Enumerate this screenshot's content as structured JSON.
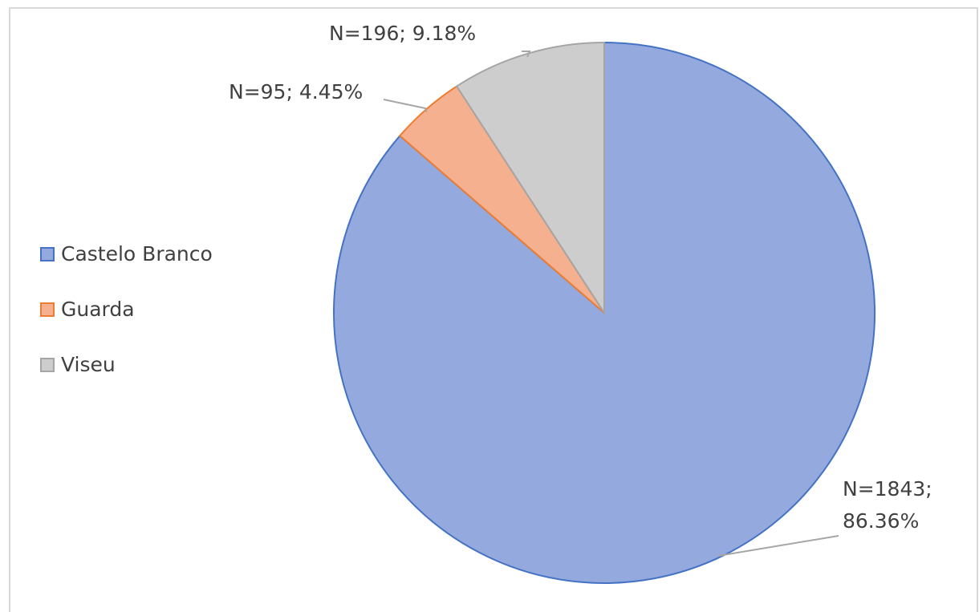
{
  "chart_data": {
    "type": "pie",
    "categories": [
      "Castelo Branco",
      "Guarda",
      "Viseu"
    ],
    "values": [
      1843,
      95,
      196
    ],
    "value_labels": [
      "N=1843; 86.36%",
      "N=95; 4.45%",
      "N=196; 9.18%"
    ],
    "colors": [
      "#94a9dd",
      "#f4b08f",
      "#cdcdcd"
    ],
    "legend": "left"
  }
}
